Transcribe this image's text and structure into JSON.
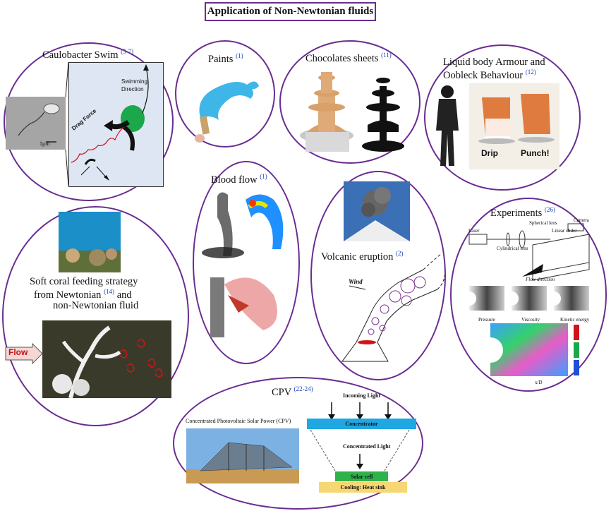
{
  "title": "Application of Non-Newtonian fluids",
  "panels": {
    "caulobacter": {
      "label": "Caulobacter Swim",
      "ref": "(5-7)",
      "scale": "1μm",
      "swim": "Swimming Direction",
      "swim_line1": "Swimming",
      "swim_line2": "Direction",
      "drag": "Drag Force"
    },
    "paints": {
      "label": "Paints",
      "ref": "(1)"
    },
    "chocolates": {
      "label": "Chocolates sheets",
      "ref": "(11)"
    },
    "armour": {
      "label_line1": "Liquid body Armour and",
      "label_line2": "Oobleck Behaviour",
      "ref": "(12)",
      "drip": "Drip",
      "punch": "Punch!"
    },
    "blood": {
      "label": "Blood flow",
      "ref": "(1)"
    },
    "volcano": {
      "label": "Volcanic eruption",
      "ref": "(2)",
      "wind": "Wind"
    },
    "coral": {
      "line1": "Soft coral feeding strategy",
      "line2": "from Newtonian",
      "ref": "(14)",
      "line2b": "and",
      "line3": "non-Newtonian fluid",
      "flow": "Flow"
    },
    "experiments": {
      "label": "Experiments",
      "ref": "(26)",
      "laser": "Laser",
      "spherical": "Spherical lens",
      "cylindrical": "Cylindrical lens",
      "slider": "Linear slider",
      "camera": "Camera",
      "flow_dir": "Flow direction",
      "pressure": "Pressure",
      "viscosity": "Viscosity",
      "kinetic": "Kinetic energy",
      "axis": "x/D"
    },
    "cpv": {
      "label": "CPV",
      "ref": "(22-24)",
      "caption": "Concentrated Photovoltaic Solar Power (CPV)",
      "incoming": "Incoming Light",
      "concentrator": "Concentrator",
      "concentrated": "Concentrated Light",
      "solar": "Solar cell",
      "cooling": "Cooling: Heat sink"
    }
  },
  "colors": {
    "border": "#6a2d91",
    "ref": "#1a3fbf",
    "concentrator": "#1ea7e1",
    "solar": "#2db34a",
    "cooling": "#f7d774"
  }
}
